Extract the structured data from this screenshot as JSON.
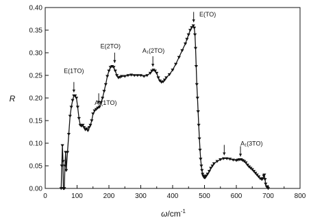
{
  "chart_data": {
    "type": "line",
    "xlabel_main": "ω",
    "xlabel_unit": "/cm",
    "xlabel_exp": "-1",
    "ylabel": "R",
    "xlim": [
      0,
      800
    ],
    "ylim": [
      0,
      0.4
    ],
    "x_ticks": [
      "0",
      "100",
      "200",
      "300",
      "400",
      "500",
      "600",
      "700",
      "800"
    ],
    "y_ticks": [
      "0.00",
      "0.05",
      "0.10",
      "0.15",
      "0.20",
      "0.25",
      "0.30",
      "0.35",
      "0.40"
    ],
    "grid": false,
    "marker": "triangle-down",
    "color": "#111111",
    "series": [
      {
        "x": [
          50,
          52,
          54,
          56,
          57,
          58,
          60,
          62,
          64,
          66,
          70,
          74,
          78,
          82,
          86,
          90,
          94,
          98,
          102,
          106,
          110,
          114,
          118,
          122,
          126,
          130,
          134,
          138,
          142,
          146,
          150,
          155,
          160,
          165,
          170,
          175,
          180,
          185,
          190,
          195,
          200,
          205,
          210,
          215,
          220,
          225,
          230,
          235,
          240,
          250,
          260,
          270,
          280,
          290,
          300,
          310,
          320,
          330,
          335,
          340,
          345,
          350,
          355,
          360,
          365,
          370,
          375,
          380,
          390,
          400,
          410,
          420,
          430,
          440,
          445,
          450,
          455,
          460,
          465,
          468,
          470,
          472,
          474,
          476,
          478,
          480,
          482,
          484,
          486,
          488,
          490,
          492,
          494,
          496,
          498,
          500,
          502,
          504,
          506,
          510,
          515,
          520,
          525,
          530,
          540,
          550,
          560,
          570,
          580,
          590,
          600,
          605,
          610,
          615,
          620,
          625,
          630,
          635,
          640,
          645,
          650,
          655,
          660,
          665,
          670,
          675,
          680,
          683,
          686,
          688,
          690,
          692,
          695,
          698,
          700
        ],
        "y": [
          0.0,
          0.05,
          0.095,
          0.06,
          0.0,
          0.0,
          0.0,
          0.05,
          0.08,
          0.04,
          0.08,
          0.12,
          0.16,
          0.18,
          0.195,
          0.205,
          0.205,
          0.2,
          0.18,
          0.155,
          0.14,
          0.138,
          0.14,
          0.135,
          0.13,
          0.132,
          0.128,
          0.135,
          0.14,
          0.15,
          0.165,
          0.172,
          0.175,
          0.178,
          0.18,
          0.19,
          0.2,
          0.215,
          0.23,
          0.248,
          0.26,
          0.268,
          0.27,
          0.268,
          0.26,
          0.25,
          0.245,
          0.246,
          0.248,
          0.248,
          0.25,
          0.251,
          0.25,
          0.25,
          0.25,
          0.248,
          0.25,
          0.255,
          0.26,
          0.262,
          0.26,
          0.255,
          0.245,
          0.238,
          0.235,
          0.236,
          0.24,
          0.245,
          0.252,
          0.262,
          0.275,
          0.29,
          0.305,
          0.32,
          0.33,
          0.34,
          0.35,
          0.356,
          0.36,
          0.355,
          0.34,
          0.31,
          0.27,
          0.23,
          0.2,
          0.17,
          0.14,
          0.11,
          0.085,
          0.065,
          0.05,
          0.04,
          0.032,
          0.028,
          0.025,
          0.024,
          0.024,
          0.026,
          0.028,
          0.032,
          0.038,
          0.045,
          0.05,
          0.055,
          0.06,
          0.064,
          0.066,
          0.066,
          0.065,
          0.063,
          0.062,
          0.063,
          0.064,
          0.064,
          0.062,
          0.06,
          0.057,
          0.052,
          0.048,
          0.045,
          0.042,
          0.038,
          0.034,
          0.03,
          0.026,
          0.022,
          0.02,
          0.022,
          0.028,
          0.03,
          0.02,
          0.01,
          0.004,
          0.002,
          0.0
        ]
      }
    ],
    "annotations": [
      {
        "label": "E(1TO)",
        "x": 90,
        "y": 0.205,
        "label_x": 90,
        "label_y": 0.255,
        "has_arrow": true
      },
      {
        "label": "A₁(1TO)",
        "x": 168,
        "y": 0.18,
        "label_x": 190,
        "label_y": 0.185,
        "has_arrow": true
      },
      {
        "label": "E(2TO)",
        "x": 218,
        "y": 0.27,
        "label_x": 205,
        "label_y": 0.31,
        "has_arrow": true
      },
      {
        "label": "A₁(2TO)",
        "x": 338,
        "y": 0.262,
        "label_x": 340,
        "label_y": 0.3,
        "has_arrow": true
      },
      {
        "label": "E(TO)",
        "x": 466,
        "y": 0.36,
        "label_x": 510,
        "label_y": 0.38,
        "has_arrow": true
      },
      {
        "label": "",
        "x": 562,
        "y": 0.066,
        "label_x": 0,
        "label_y": 0,
        "has_arrow": true
      },
      {
        "label": "A₁(3TO)",
        "x": 613,
        "y": 0.063,
        "label_x": 648,
        "label_y": 0.095,
        "has_arrow": true
      }
    ]
  }
}
